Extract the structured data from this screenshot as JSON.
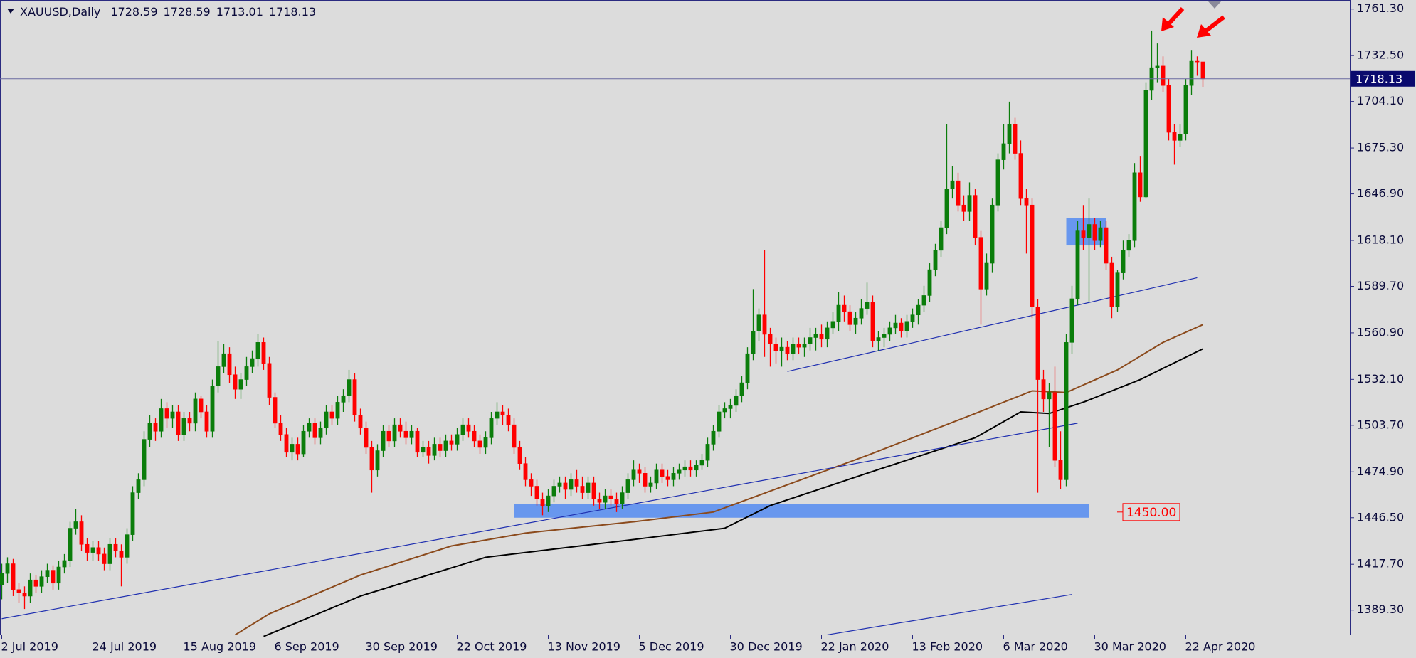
{
  "chart_data": {
    "type": "candlestick",
    "symbol": "XAUUSD,Daily",
    "categories": [
      "2 Jul 2019",
      null,
      null,
      null,
      null,
      null,
      null,
      null,
      null,
      null,
      null,
      null,
      null,
      null,
      null,
      null,
      "24 Jul 2019",
      null,
      null,
      null,
      null,
      null,
      null,
      null,
      null,
      null,
      null,
      null,
      null,
      null,
      null,
      null,
      "15 Aug 2019",
      null,
      null,
      null,
      null,
      null,
      null,
      null,
      null,
      null,
      null,
      null,
      null,
      null,
      null,
      null,
      "6 Sep 2019",
      null,
      null,
      null,
      null,
      null,
      null,
      null,
      null,
      null,
      null,
      null,
      null,
      null,
      null,
      null,
      "30 Sep 2019",
      null,
      null,
      null,
      null,
      null,
      null,
      null,
      null,
      null,
      null,
      null,
      null,
      null,
      null,
      null,
      "22 Oct 2019",
      null,
      null,
      null,
      null,
      null,
      null,
      null,
      null,
      null,
      null,
      null,
      null,
      null,
      null,
      null,
      "13 Nov 2019",
      null,
      null,
      null,
      null,
      null,
      null,
      null,
      null,
      null,
      null,
      null,
      null,
      null,
      null,
      null,
      "5 Dec 2019",
      null,
      null,
      null,
      null,
      null,
      null,
      null,
      null,
      null,
      null,
      null,
      null,
      null,
      null,
      null,
      "30 Dec 2019",
      null,
      null,
      null,
      null,
      null,
      null,
      null,
      null,
      null,
      null,
      null,
      null,
      null,
      null,
      null,
      "22 Jan 2020",
      null,
      null,
      null,
      null,
      null,
      null,
      null,
      null,
      null,
      null,
      null,
      null,
      null,
      null,
      null,
      "13 Feb 2020",
      null,
      null,
      null,
      null,
      null,
      null,
      null,
      null,
      null,
      null,
      null,
      null,
      null,
      null,
      null,
      "6 Mar 2020",
      null,
      null,
      null,
      null,
      null,
      null,
      null,
      null,
      null,
      null,
      null,
      null,
      null,
      null,
      null,
      "30 Mar 2020",
      null,
      null,
      null,
      null,
      null,
      null,
      null,
      null,
      null,
      null,
      null,
      null,
      null,
      null,
      null,
      "22 Apr 2020",
      null,
      null,
      null
    ],
    "open": [
      1405,
      1412,
      1418,
      1402,
      1400,
      1398,
      1408,
      1404,
      1410,
      1414,
      1406,
      1416,
      1420,
      1440,
      1444,
      1430,
      1425,
      1428,
      1424,
      1418,
      1430,
      1426,
      1422,
      1436,
      1462,
      1470,
      1495,
      1505,
      1500,
      1514,
      1508,
      1512,
      1498,
      1508,
      1505,
      1520,
      1512,
      1500,
      1528,
      1540,
      1548,
      1535,
      1526,
      1532,
      1540,
      1545,
      1555,
      1542,
      1521,
      1505,
      1498,
      1487,
      1492,
      1486,
      1500,
      1505,
      1496,
      1502,
      1512,
      1508,
      1518,
      1522,
      1532,
      1510,
      1502,
      1490,
      1476,
      1488,
      1500,
      1494,
      1504,
      1500,
      1496,
      1500,
      1487,
      1490,
      1485,
      1492,
      1488,
      1494,
      1492,
      1498,
      1504,
      1500,
      1494,
      1490,
      1496,
      1508,
      1512,
      1510,
      1504,
      1490,
      1480,
      1470,
      1466,
      1458,
      1454,
      1460,
      1466,
      1468,
      1464,
      1470,
      1466,
      1462,
      1468,
      1458,
      1456,
      1460,
      1458,
      1455,
      1462,
      1470,
      1476,
      1474,
      1466,
      1468,
      1476,
      1472,
      1470,
      1474,
      1476,
      1478,
      1476,
      1479,
      1482,
      1492,
      1500,
      1512,
      1514,
      1516,
      1522,
      1530,
      1548,
      1562,
      1572,
      1560,
      1554,
      1550,
      1552,
      1548,
      1554,
      1552,
      1554,
      1558,
      1560,
      1557,
      1564,
      1568,
      1578,
      1574,
      1566,
      1570,
      1576,
      1580,
      1556,
      1558,
      1560,
      1564,
      1567,
      1562,
      1568,
      1572,
      1578,
      1584,
      1600,
      1612,
      1626,
      1650,
      1655,
      1640,
      1636,
      1646,
      1620,
      1588,
      1604,
      1640,
      1668,
      1678,
      1690,
      1672,
      1644,
      1640,
      1577,
      1532,
      1520,
      1524,
      1482,
      1470,
      1555,
      1582,
      1624,
      1620,
      1628,
      1618,
      1626,
      1604,
      1577,
      1598,
      1612,
      1618,
      1660,
      1645,
      1711,
      1725,
      1726,
      1714,
      1685,
      1680,
      1684,
      1714,
      1729,
      1728.59
    ],
    "high": [
      1418,
      1422,
      1421,
      1406,
      1404,
      1412,
      1411,
      1414,
      1418,
      1417,
      1420,
      1424,
      1444,
      1452,
      1448,
      1434,
      1432,
      1432,
      1428,
      1434,
      1434,
      1430,
      1440,
      1466,
      1474,
      1500,
      1510,
      1508,
      1520,
      1518,
      1516,
      1516,
      1512,
      1512,
      1524,
      1522,
      1516,
      1532,
      1556,
      1554,
      1552,
      1540,
      1536,
      1546,
      1550,
      1560,
      1558,
      1546,
      1524,
      1510,
      1502,
      1496,
      1496,
      1504,
      1508,
      1508,
      1506,
      1516,
      1516,
      1522,
      1526,
      1538,
      1536,
      1514,
      1506,
      1494,
      1492,
      1504,
      1504,
      1508,
      1508,
      1506,
      1504,
      1502,
      1494,
      1494,
      1496,
      1496,
      1498,
      1498,
      1502,
      1508,
      1508,
      1504,
      1498,
      1500,
      1512,
      1518,
      1516,
      1514,
      1508,
      1494,
      1484,
      1474,
      1470,
      1462,
      1464,
      1470,
      1472,
      1472,
      1474,
      1476,
      1472,
      1472,
      1472,
      1462,
      1464,
      1464,
      1462,
      1466,
      1474,
      1482,
      1480,
      1478,
      1472,
      1480,
      1480,
      1476,
      1478,
      1480,
      1482,
      1482,
      1482,
      1486,
      1496,
      1504,
      1516,
      1518,
      1520,
      1526,
      1534,
      1552,
      1588,
      1576,
      1612,
      1564,
      1558,
      1558,
      1556,
      1558,
      1558,
      1558,
      1564,
      1564,
      1566,
      1568,
      1574,
      1586,
      1584,
      1578,
      1574,
      1582,
      1592,
      1584,
      1562,
      1564,
      1568,
      1572,
      1570,
      1572,
      1576,
      1582,
      1590,
      1604,
      1616,
      1630,
      1690,
      1664,
      1660,
      1646,
      1654,
      1650,
      1624,
      1610,
      1644,
      1672,
      1690,
      1704,
      1694,
      1680,
      1650,
      1644,
      1582,
      1538,
      1530,
      1540,
      1500,
      1560,
      1590,
      1630,
      1640,
      1644,
      1632,
      1630,
      1630,
      1608,
      1600,
      1618,
      1622,
      1666,
      1670,
      1716,
      1748,
      1740,
      1732,
      1718,
      1690,
      1690,
      1718,
      1736,
      1732,
      1728.59
    ],
    "low": [
      1396,
      1406,
      1398,
      1394,
      1390,
      1394,
      1400,
      1400,
      1406,
      1402,
      1402,
      1412,
      1416,
      1436,
      1426,
      1420,
      1420,
      1420,
      1414,
      1414,
      1422,
      1404,
      1418,
      1432,
      1458,
      1466,
      1490,
      1494,
      1496,
      1502,
      1502,
      1494,
      1494,
      1500,
      1500,
      1508,
      1496,
      1496,
      1524,
      1536,
      1530,
      1520,
      1520,
      1528,
      1536,
      1540,
      1538,
      1516,
      1502,
      1494,
      1484,
      1482,
      1482,
      1484,
      1496,
      1492,
      1492,
      1498,
      1504,
      1504,
      1512,
      1518,
      1506,
      1498,
      1486,
      1462,
      1472,
      1484,
      1490,
      1490,
      1496,
      1492,
      1492,
      1484,
      1484,
      1480,
      1482,
      1484,
      1484,
      1488,
      1488,
      1494,
      1496,
      1490,
      1486,
      1486,
      1492,
      1504,
      1504,
      1500,
      1486,
      1476,
      1466,
      1460,
      1454,
      1448,
      1450,
      1456,
      1462,
      1458,
      1460,
      1462,
      1458,
      1458,
      1454,
      1452,
      1452,
      1454,
      1450,
      1452,
      1458,
      1466,
      1468,
      1462,
      1462,
      1464,
      1468,
      1466,
      1466,
      1470,
      1472,
      1472,
      1472,
      1476,
      1478,
      1488,
      1496,
      1508,
      1508,
      1512,
      1518,
      1526,
      1544,
      1556,
      1546,
      1540,
      1542,
      1540,
      1544,
      1544,
      1548,
      1546,
      1550,
      1550,
      1552,
      1552,
      1560,
      1562,
      1568,
      1562,
      1560,
      1566,
      1572,
      1552,
      1550,
      1552,
      1556,
      1560,
      1558,
      1558,
      1564,
      1566,
      1574,
      1580,
      1596,
      1608,
      1622,
      1644,
      1636,
      1630,
      1630,
      1615,
      1566,
      1584,
      1598,
      1636,
      1662,
      1672,
      1668,
      1640,
      1610,
      1570,
      1462,
      1512,
      1490,
      1478,
      1464,
      1466,
      1548,
      1578,
      1612,
      1580,
      1612,
      1614,
      1600,
      1570,
      1574,
      1594,
      1608,
      1614,
      1642,
      1644,
      1705,
      1716,
      1710,
      1680,
      1665,
      1676,
      1680,
      1708,
      1720,
      1713.01
    ],
    "close": [
      1412,
      1418,
      1402,
      1400,
      1398,
      1408,
      1404,
      1410,
      1414,
      1406,
      1416,
      1420,
      1440,
      1444,
      1430,
      1425,
      1428,
      1424,
      1418,
      1430,
      1426,
      1422,
      1436,
      1462,
      1470,
      1495,
      1505,
      1500,
      1514,
      1508,
      1512,
      1498,
      1508,
      1505,
      1520,
      1512,
      1500,
      1528,
      1540,
      1548,
      1535,
      1526,
      1532,
      1540,
      1545,
      1555,
      1542,
      1521,
      1505,
      1498,
      1487,
      1492,
      1486,
      1500,
      1505,
      1496,
      1502,
      1512,
      1508,
      1518,
      1522,
      1532,
      1510,
      1502,
      1490,
      1476,
      1488,
      1500,
      1494,
      1504,
      1500,
      1496,
      1500,
      1487,
      1490,
      1485,
      1492,
      1488,
      1494,
      1492,
      1498,
      1504,
      1500,
      1494,
      1490,
      1496,
      1508,
      1512,
      1510,
      1504,
      1490,
      1480,
      1470,
      1466,
      1458,
      1454,
      1460,
      1466,
      1468,
      1464,
      1470,
      1466,
      1462,
      1468,
      1458,
      1456,
      1460,
      1458,
      1455,
      1462,
      1470,
      1476,
      1474,
      1466,
      1468,
      1476,
      1472,
      1470,
      1474,
      1476,
      1478,
      1476,
      1479,
      1482,
      1492,
      1500,
      1512,
      1514,
      1516,
      1522,
      1530,
      1548,
      1562,
      1572,
      1560,
      1554,
      1550,
      1552,
      1548,
      1554,
      1552,
      1554,
      1558,
      1560,
      1557,
      1564,
      1568,
      1578,
      1574,
      1566,
      1570,
      1576,
      1580,
      1556,
      1558,
      1560,
      1564,
      1567,
      1562,
      1568,
      1572,
      1578,
      1584,
      1600,
      1612,
      1626,
      1650,
      1655,
      1640,
      1636,
      1646,
      1620,
      1588,
      1604,
      1640,
      1668,
      1678,
      1690,
      1672,
      1644,
      1640,
      1577,
      1532,
      1520,
      1524,
      1482,
      1470,
      1555,
      1582,
      1624,
      1620,
      1628,
      1618,
      1626,
      1604,
      1577,
      1598,
      1612,
      1618,
      1660,
      1645,
      1711,
      1725,
      1726,
      1714,
      1685,
      1680,
      1684,
      1714,
      1729,
      1728.59,
      1718.13
    ],
    "up_color": "#0b7d0b",
    "down_color": "#ff0000",
    "ylim": [
      1374.2,
      1766.9
    ],
    "yticks": [
      {
        "value": 1761.3,
        "label": "1761.30"
      },
      {
        "value": 1732.5,
        "label": "1732.50"
      },
      {
        "value": 1704.1,
        "label": "1704.10"
      },
      {
        "value": 1675.3,
        "label": "1675.30"
      },
      {
        "value": 1646.9,
        "label": "1646.90"
      },
      {
        "value": 1618.1,
        "label": "1618.10"
      },
      {
        "value": 1589.7,
        "label": "1589.70"
      },
      {
        "value": 1560.9,
        "label": "1560.90"
      },
      {
        "value": 1532.1,
        "label": "1532.10"
      },
      {
        "value": 1503.7,
        "label": "1503.70"
      },
      {
        "value": 1474.9,
        "label": "1474.90"
      },
      {
        "value": 1446.5,
        "label": "1446.50"
      },
      {
        "value": 1417.7,
        "label": "1417.70"
      },
      {
        "value": 1389.3,
        "label": "1389.30"
      }
    ],
    "moving_averages": [
      {
        "color": "#8b4a1c",
        "x": [
          41,
          47,
          63,
          79,
          92,
          111,
          125,
          135,
          152,
          171,
          181,
          187,
          196,
          204,
          211
        ],
        "values": [
          1374,
          1387,
          1411,
          1429,
          1437,
          1444,
          1450,
          1463,
          1485,
          1511,
          1525,
          1524,
          1538,
          1555,
          1566
        ]
      },
      {
        "color": "#000000",
        "x": [
          46,
          63,
          85,
          111,
          127,
          135,
          152,
          171,
          179,
          184,
          190,
          200,
          211
        ],
        "values": [
          1373,
          1398,
          1422,
          1433,
          1440,
          1454,
          1474,
          1496,
          1512,
          1511,
          1518,
          1532,
          1551
        ]
      }
    ],
    "trendlines": [
      {
        "color": "#1f2fb0",
        "x": [
          0,
          189
        ],
        "values": [
          1384,
          1505
        ]
      },
      {
        "color": "#1f2fb0",
        "x": [
          138,
          210
        ],
        "values": [
          1537,
          1595
        ]
      },
      {
        "color": "#1f2fb0",
        "x": [
          145,
          188
        ],
        "values": [
          1374,
          1399
        ]
      }
    ],
    "zones": [
      {
        "color": "#5b8ff0",
        "x": [
          90,
          191
        ],
        "values": [
          1446.5,
          1455
        ]
      },
      {
        "color": "#5b8ff0",
        "x": [
          187,
          194
        ],
        "values": [
          1615,
          1632
        ]
      }
    ],
    "level_label": {
      "value": 1450,
      "label": "1450.00"
    }
  }
}
